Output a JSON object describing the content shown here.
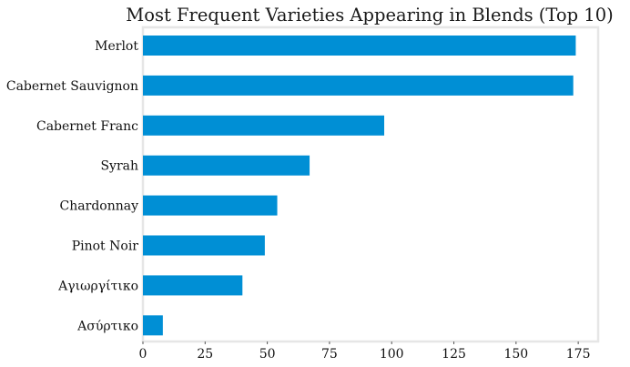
{
  "chart_data": {
    "type": "bar",
    "orientation": "horizontal",
    "title": "Most Frequent Varieties Appearing in Blends (Top 10)",
    "xlabel": "",
    "ylabel": "",
    "categories": [
      "Merlot",
      "Cabernet Sauvignon",
      "Cabernet Franc",
      "Syrah",
      "Chardonnay",
      "Pinot Noir",
      "Αγιωργίτικο",
      "Ασύρτικο"
    ],
    "values": [
      174,
      173,
      97,
      67,
      54,
      49,
      40,
      8
    ],
    "xlim": [
      0,
      183
    ],
    "xticks": [
      0,
      25,
      50,
      75,
      100,
      125,
      150,
      175
    ],
    "grid": false,
    "legend": "none",
    "bar_color": "#008fd5"
  }
}
